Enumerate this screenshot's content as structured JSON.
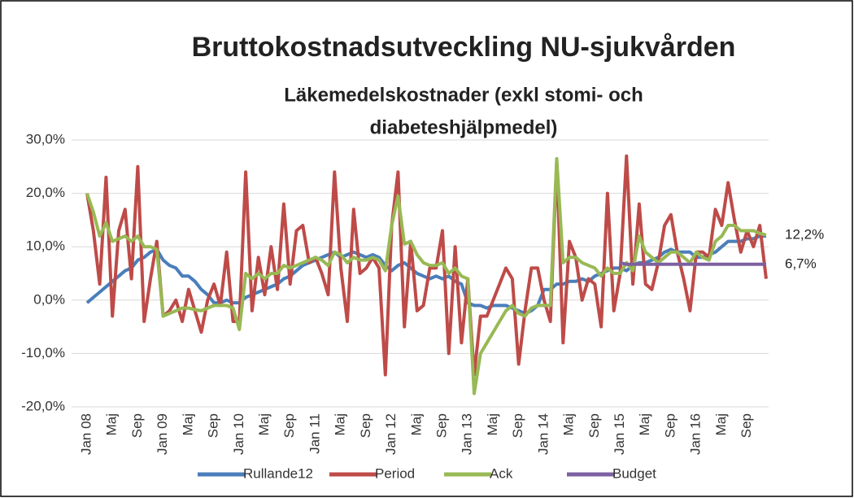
{
  "chart_data": {
    "type": "line",
    "title": "Bruttokostnadsutveckling NU-sjukvården",
    "subtitle": [
      "Läkemedelskostnader (exkl stomi- och",
      "diabeteshjälpmedel)"
    ],
    "categories": [
      "Jan 08",
      null,
      null,
      null,
      "Maj",
      null,
      null,
      null,
      "Sep",
      null,
      null,
      null,
      "Jan 09",
      null,
      null,
      null,
      "Maj",
      null,
      null,
      null,
      "Sep",
      null,
      null,
      null,
      "Jan 10",
      null,
      null,
      null,
      "Maj",
      null,
      null,
      null,
      "Sep",
      null,
      null,
      null,
      "Jan 11",
      null,
      null,
      null,
      "Maj",
      null,
      null,
      null,
      "Sep",
      null,
      null,
      null,
      "Jan 12",
      null,
      null,
      null,
      "Maj",
      null,
      null,
      null,
      "Sep",
      null,
      null,
      null,
      "Jan 13",
      null,
      null,
      null,
      "Maj",
      null,
      null,
      null,
      "Sep",
      null,
      null,
      null,
      "Jan 14",
      null,
      null,
      null,
      "Maj",
      null,
      null,
      null,
      "Sep",
      null,
      null,
      null,
      "Jan 15",
      null,
      null,
      null,
      "Maj",
      null,
      null,
      null,
      "Sep",
      null,
      null,
      null,
      "Jan 16",
      null,
      null,
      null,
      "Maj",
      null,
      null,
      null,
      "Sep",
      null,
      null,
      null
    ],
    "series": [
      {
        "name": "Rullande12",
        "color": "#4a7ebb",
        "values": [
          -0.5,
          0.5,
          1.5,
          2.5,
          3.5,
          4.5,
          5.5,
          6,
          7.5,
          8,
          9,
          9.5,
          7.5,
          6.5,
          6,
          4.5,
          4.5,
          3.5,
          2,
          1,
          -0.5,
          -0.5,
          0,
          -0.5,
          -0.5,
          0.5,
          1,
          1.5,
          2,
          2.5,
          3,
          4,
          4.5,
          5.5,
          6.5,
          7,
          7.5,
          8,
          8.5,
          9,
          8,
          8.5,
          9,
          8.5,
          8,
          8.5,
          8,
          6.5,
          5.5,
          6.5,
          7,
          6,
          5,
          4.5,
          4,
          4.5,
          4,
          4.5,
          3.5,
          3,
          -0.5,
          -1,
          -1,
          -1.5,
          -1,
          -1,
          -1,
          -1.5,
          -2,
          -2.5,
          -2,
          -1,
          2,
          2,
          3,
          3,
          3.5,
          3.5,
          4,
          3.5,
          4.5,
          5,
          5.5,
          6,
          6,
          5.5,
          6.5,
          7,
          7,
          7.5,
          8,
          9,
          9.5,
          9,
          9,
          9,
          8,
          8,
          8.5,
          9,
          10,
          11,
          11,
          11,
          11.5,
          11.5,
          12,
          12
        ]
      },
      {
        "name": "Period",
        "color": "#be4b48",
        "values": [
          20,
          13,
          3,
          23,
          -3,
          13,
          17,
          4,
          25,
          -4,
          4,
          11,
          -3,
          -2,
          0,
          -4,
          2,
          -2,
          -6,
          0,
          3,
          -1,
          9,
          -4,
          -4,
          24,
          -2,
          8,
          1,
          10,
          2,
          18,
          3,
          13,
          14,
          7,
          8,
          5,
          1,
          24,
          6,
          -4,
          17,
          5,
          6,
          8,
          6,
          -14,
          14,
          24,
          -5,
          11,
          -2,
          -1,
          6,
          6,
          13,
          -10,
          10,
          -8,
          4,
          -14,
          -3,
          -3,
          0,
          3,
          6,
          4,
          -12,
          -2,
          6,
          6,
          0,
          -4,
          26,
          -8,
          11,
          8,
          0,
          4,
          3,
          -5,
          20,
          -2,
          5,
          27,
          3,
          18,
          3,
          2,
          7,
          14,
          16,
          9,
          4,
          -2,
          9,
          9,
          8,
          17,
          14,
          22,
          15,
          9,
          13,
          10,
          14,
          4
        ]
      },
      {
        "name": "Ack",
        "color": "#98b954",
        "values": [
          20,
          16.5,
          12,
          14.5,
          11,
          11.5,
          12,
          11,
          12,
          10,
          10,
          9.5,
          -3,
          -2.5,
          -2,
          -1.5,
          -1.5,
          -1.8,
          -2,
          -1.5,
          -1,
          -1,
          -1,
          -1.5,
          -5.5,
          5,
          4,
          5,
          4,
          5,
          5,
          6.5,
          6,
          6.5,
          7,
          7.5,
          8,
          7.5,
          6.5,
          9,
          8.5,
          7,
          8,
          7.5,
          7.5,
          8,
          7.5,
          5.5,
          14,
          19.5,
          10.5,
          11,
          8.5,
          7,
          6.5,
          6.5,
          7,
          5,
          6,
          4.5,
          4,
          -17.5,
          -10,
          -8,
          -6,
          -4,
          -2,
          -1,
          -2.5,
          -3,
          -1.5,
          -1,
          -1,
          -1,
          26.5,
          7,
          8,
          8,
          7,
          6.5,
          6,
          4.5,
          6,
          5,
          5,
          7,
          5.5,
          12,
          9,
          8,
          7,
          8,
          9,
          9,
          8,
          7,
          9,
          8,
          7.5,
          11,
          12,
          14,
          14,
          13,
          13,
          13,
          12.5,
          12.2
        ],
        "value_labels": [
          null,
          null,
          null,
          null,
          null,
          null,
          null,
          null,
          null,
          null,
          null,
          null,
          null,
          null,
          null,
          null,
          null,
          null,
          null,
          null,
          null,
          null,
          null,
          null,
          null,
          null,
          null,
          null,
          null,
          null,
          null,
          null,
          null,
          null,
          null,
          null,
          null,
          null,
          null,
          null,
          null,
          null,
          null,
          null,
          null,
          null,
          null,
          null,
          null,
          null,
          null,
          null,
          null,
          null,
          null,
          null,
          null,
          null,
          null,
          null,
          null,
          null,
          null,
          null,
          null,
          null,
          null,
          null,
          null,
          null,
          null,
          null,
          null,
          null,
          null,
          null,
          null,
          null,
          null,
          null,
          null,
          null,
          null,
          null,
          null,
          null,
          null,
          null,
          null,
          null,
          null,
          null,
          null,
          null,
          null,
          null,
          null,
          null,
          null,
          null,
          null,
          null,
          null,
          null,
          null,
          null,
          null,
          "12,2%"
        ]
      },
      {
        "name": "Budget",
        "color": "#7d60a0",
        "values": [
          null,
          null,
          null,
          null,
          null,
          null,
          null,
          null,
          null,
          null,
          null,
          null,
          null,
          null,
          null,
          null,
          null,
          null,
          null,
          null,
          null,
          null,
          null,
          null,
          null,
          null,
          null,
          null,
          null,
          null,
          null,
          null,
          null,
          null,
          null,
          null,
          null,
          null,
          null,
          null,
          null,
          null,
          null,
          null,
          null,
          null,
          null,
          null,
          null,
          null,
          null,
          null,
          null,
          null,
          null,
          null,
          null,
          null,
          null,
          null,
          null,
          null,
          null,
          null,
          null,
          null,
          null,
          null,
          null,
          null,
          null,
          null,
          null,
          null,
          null,
          null,
          null,
          null,
          null,
          null,
          null,
          null,
          null,
          null,
          7,
          6.7,
          6.7,
          6.7,
          6.7,
          6.7,
          6.7,
          6.7,
          6.7,
          6.7,
          6.7,
          6.7,
          6.7,
          6.7,
          6.7,
          6.7,
          6.7,
          6.7,
          6.7,
          6.7,
          6.7,
          6.7,
          6.7,
          6.7
        ],
        "value_labels": [
          null,
          null,
          null,
          null,
          null,
          null,
          null,
          null,
          null,
          null,
          null,
          null,
          null,
          null,
          null,
          null,
          null,
          null,
          null,
          null,
          null,
          null,
          null,
          null,
          null,
          null,
          null,
          null,
          null,
          null,
          null,
          null,
          null,
          null,
          null,
          null,
          null,
          null,
          null,
          null,
          null,
          null,
          null,
          null,
          null,
          null,
          null,
          null,
          null,
          null,
          null,
          null,
          null,
          null,
          null,
          null,
          null,
          null,
          null,
          null,
          null,
          null,
          null,
          null,
          null,
          null,
          null,
          null,
          null,
          null,
          null,
          null,
          null,
          null,
          null,
          null,
          null,
          null,
          null,
          null,
          null,
          null,
          null,
          null,
          null,
          null,
          null,
          null,
          null,
          null,
          null,
          null,
          null,
          null,
          null,
          null,
          null,
          null,
          null,
          null,
          null,
          null,
          null,
          null,
          null,
          null,
          null,
          "6,7%"
        ]
      }
    ],
    "ylim": [
      -20,
      30
    ],
    "yticks": [
      {
        "value": -20,
        "label": "-20,0%"
      },
      {
        "value": -10,
        "label": "-10,0%"
      },
      {
        "value": 0,
        "label": "0,0%"
      },
      {
        "value": 10,
        "label": "10,0%"
      },
      {
        "value": 20,
        "label": "20,0%"
      },
      {
        "value": 30,
        "label": "30,0%"
      }
    ],
    "grid": true,
    "legend": "bottom"
  }
}
